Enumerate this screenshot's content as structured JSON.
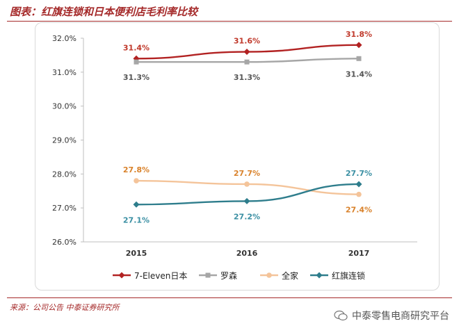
{
  "header": {
    "title": "图表：红旗连锁和日本便利店毛利率比较"
  },
  "footer": {
    "source": "来源：公司公告 中泰证券研究所",
    "watermark": "中泰零售电商研究平台"
  },
  "chart_data": {
    "type": "line",
    "title": "",
    "xlabel": "",
    "ylabel": "",
    "x": [
      "2015",
      "2016",
      "2017"
    ],
    "ylim": [
      26.0,
      32.0
    ],
    "yticks": [
      "26.0%",
      "27.0%",
      "28.0%",
      "29.0%",
      "30.0%",
      "31.0%",
      "32.0%"
    ],
    "grid": false,
    "legend": "bottom",
    "series": [
      {
        "name": "7-Eleven日本",
        "values": [
          31.4,
          31.6,
          31.8
        ],
        "labels": [
          "31.4%",
          "31.6%",
          "31.8%"
        ],
        "color": "#b22222",
        "label_color": "#c0392b",
        "label_pos": "above",
        "marker": "diamond"
      },
      {
        "name": "罗森",
        "values": [
          31.3,
          31.3,
          31.4
        ],
        "labels": [
          "31.3%",
          "31.3%",
          "31.4%"
        ],
        "color": "#a6a6a6",
        "label_color": "#555555",
        "label_pos": "below",
        "marker": "square"
      },
      {
        "name": "全家",
        "values": [
          27.8,
          27.7,
          27.4
        ],
        "labels": [
          "27.8%",
          "27.7%",
          "27.4%"
        ],
        "color": "#f4c49a",
        "label_color": "#d9822b",
        "label_pos": "above,above,below",
        "marker": "circle"
      },
      {
        "name": "红旗连锁",
        "values": [
          27.1,
          27.2,
          27.7
        ],
        "labels": [
          "27.1%",
          "27.2%",
          "27.7%"
        ],
        "color": "#2e7d8c",
        "label_color": "#3a8fa3",
        "label_pos": "below,below,above",
        "marker": "diamond"
      }
    ]
  }
}
